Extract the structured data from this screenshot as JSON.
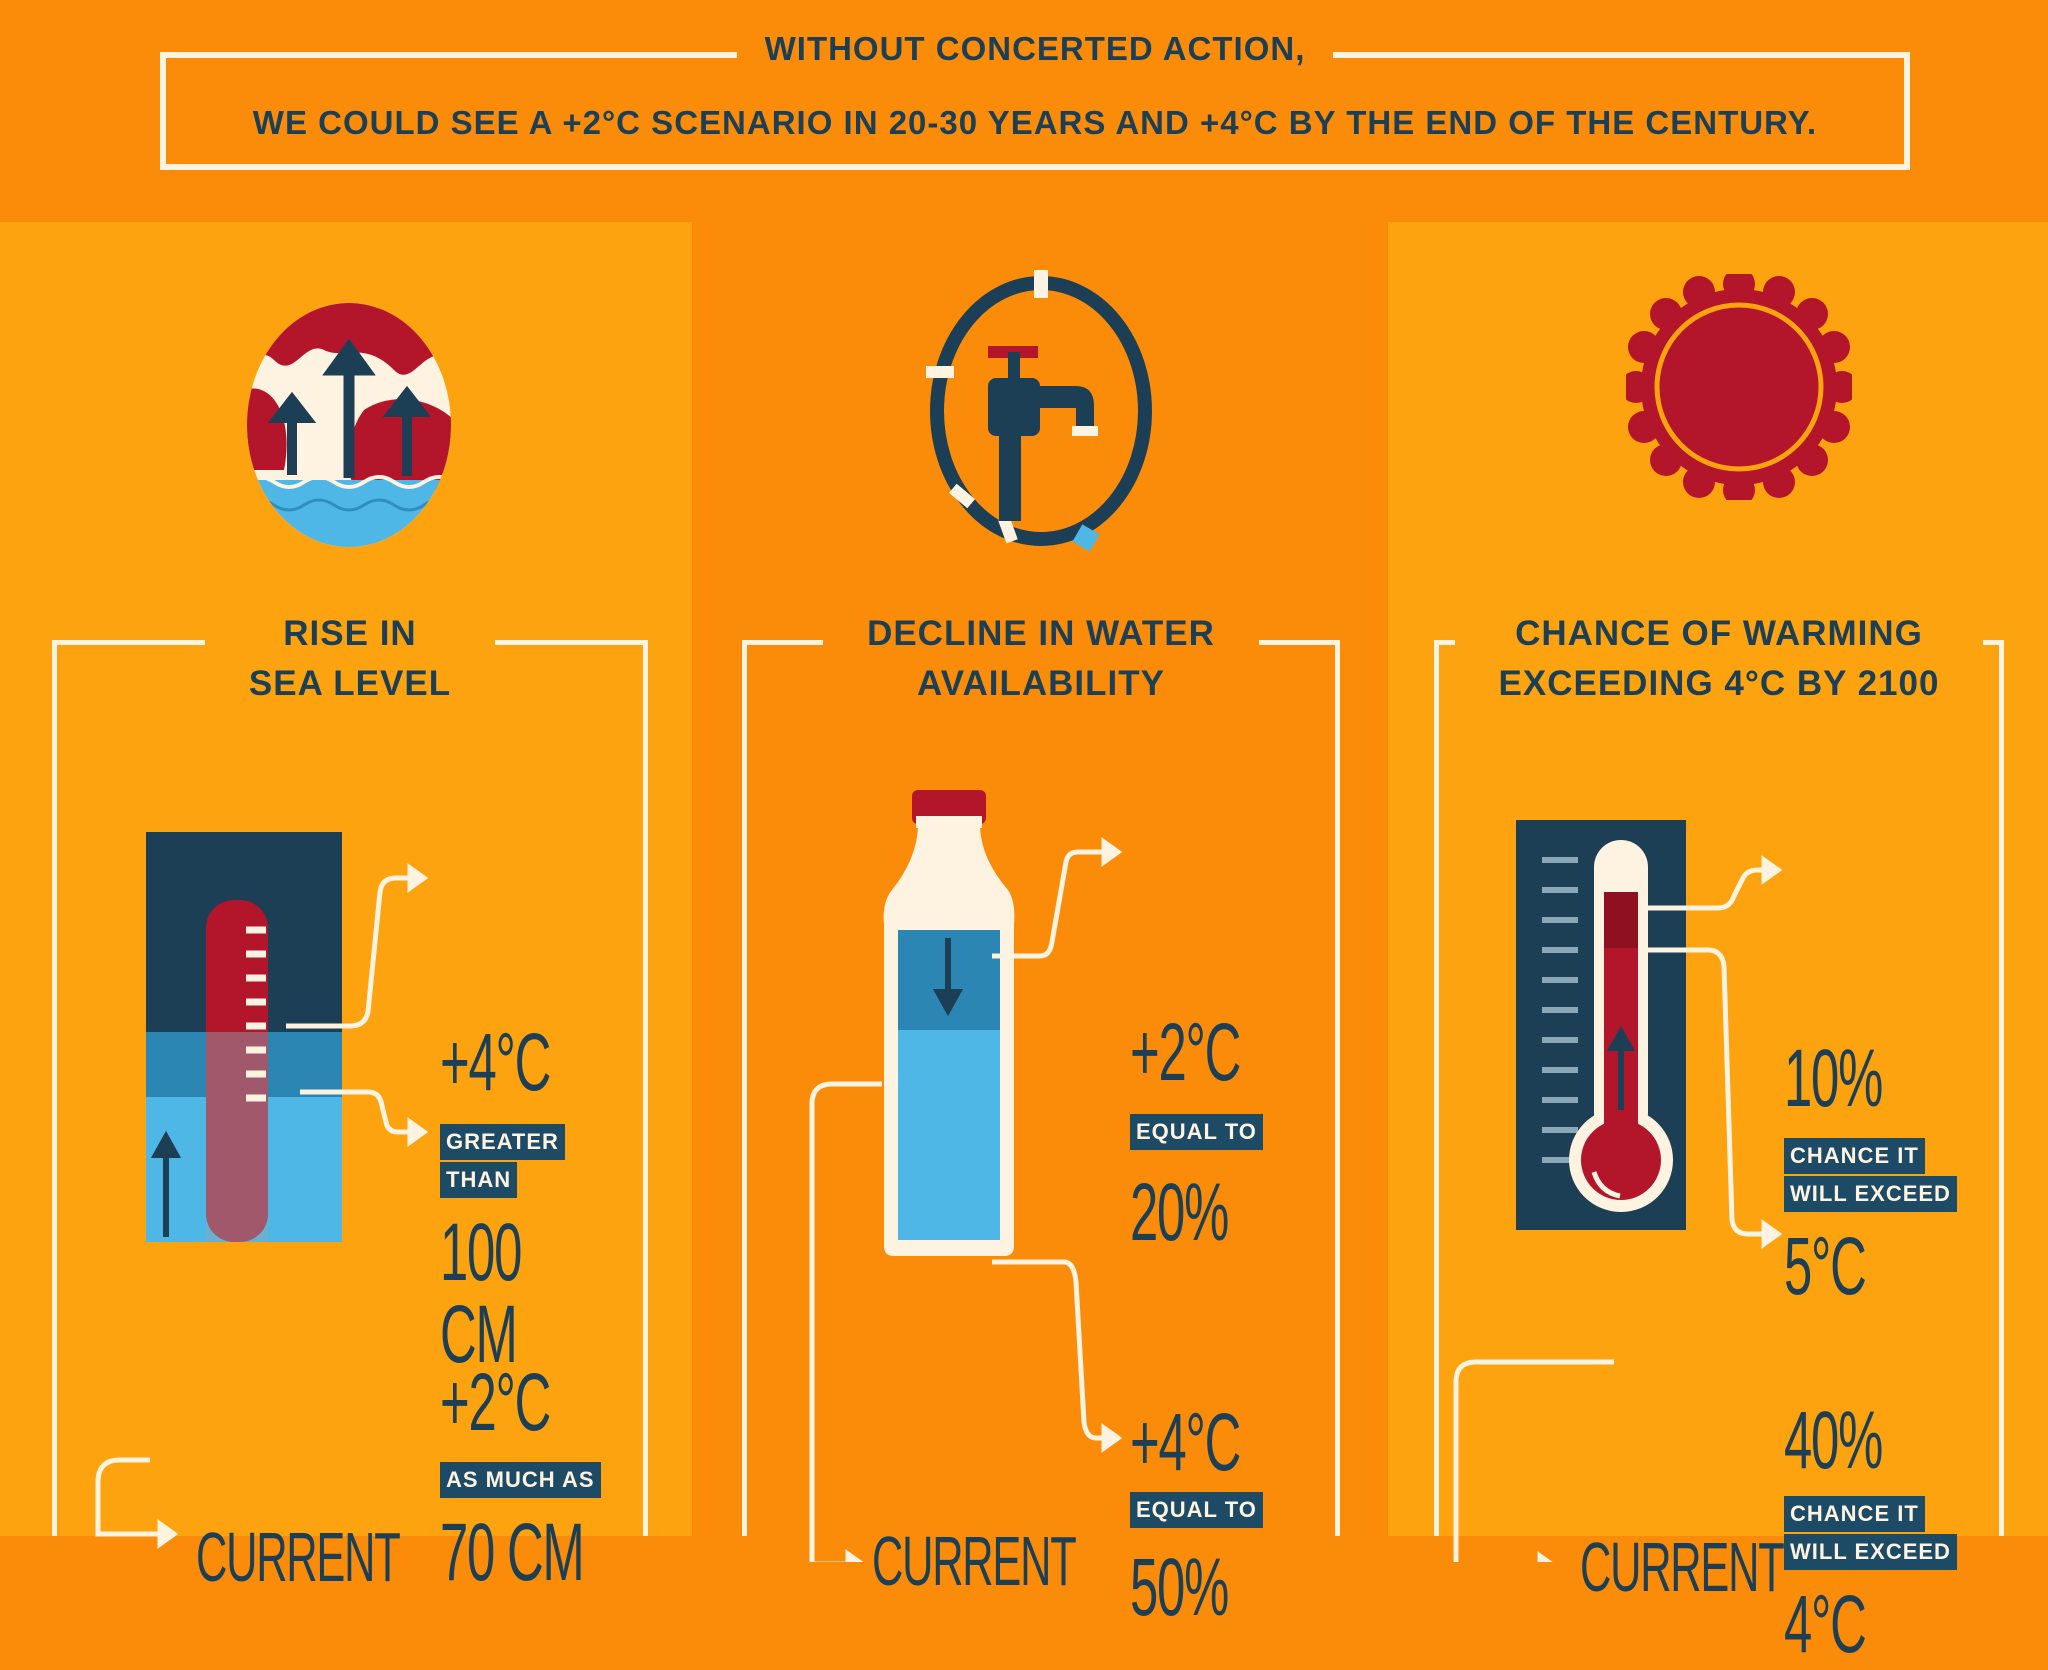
{
  "banner": {
    "line1": "WITHOUT CONCERTED ACTION,",
    "line2": "WE COULD SEE A +2°C SCENARIO IN 20-30 YEARS AND +4°C BY THE END OF THE CENTURY."
  },
  "panels": {
    "sea": {
      "icon": "globe-sea-rise-icon",
      "title1": "RISE IN",
      "title2": "SEA LEVEL",
      "upper_temp": "+4°C",
      "upper_tag1": "GREATER",
      "upper_tag2": "THAN",
      "upper_value": "100 CM",
      "lower_temp": "+2°C",
      "lower_tag1": "AS MUCH AS",
      "lower_value": "70 CM",
      "current": "CURRENT"
    },
    "water": {
      "icon": "water-tap-icon",
      "title1": "DECLINE IN WATER",
      "title2": "AVAILABILITY",
      "upper_temp": "+2°C",
      "upper_tag1": "EQUAL TO",
      "upper_value": "20%",
      "lower_temp": "+4°C",
      "lower_tag1": "EQUAL TO",
      "lower_value": "50%",
      "current": "CURRENT"
    },
    "warm": {
      "icon": "sun-icon",
      "title1": "CHANCE OF WARMING",
      "title2": "EXCEEDING 4°C BY 2100",
      "upper_pct": "10%",
      "upper_tag1": "CHANCE IT",
      "upper_tag2": "WILL EXCEED",
      "upper_value": "5°C",
      "lower_pct": "40%",
      "lower_tag1": "CHANCE IT",
      "lower_tag2": "WILL EXCEED",
      "lower_value": "4°C",
      "current": "CURRENT"
    }
  },
  "colors": {
    "orange_dark": "#fb8c0a",
    "orange_light": "#fca30f",
    "navy": "#1d3f55",
    "red": "#b3162b",
    "water": "#4fb7e6",
    "cream": "#fdf3e0"
  }
}
